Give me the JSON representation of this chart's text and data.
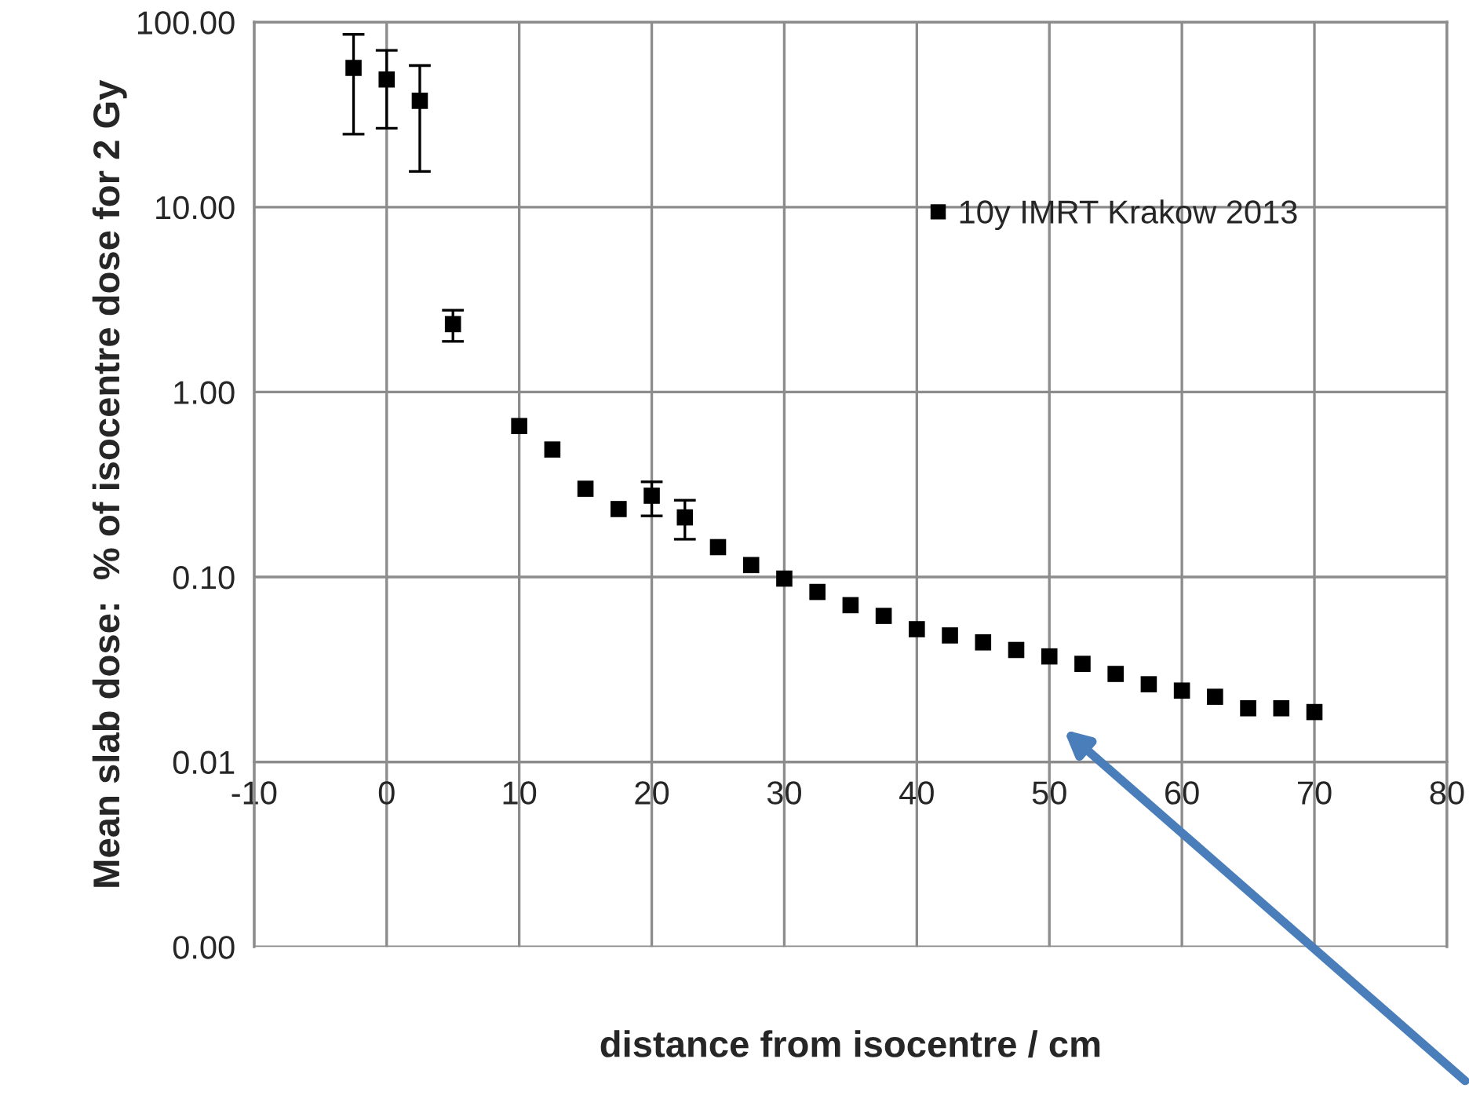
{
  "chart_data": {
    "type": "scatter",
    "xlabel": "distance from isocentre / cm",
    "ylabel": "Mean slab dose:  % of isocentre dose for 2 Gy",
    "x": [
      -2.5,
      0,
      2.5,
      5,
      10,
      12.5,
      15,
      17.5,
      20,
      22.5,
      25,
      27.5,
      30,
      32.5,
      35,
      37.5,
      40,
      42.5,
      45,
      47.5,
      50,
      52.5,
      55,
      57.5,
      60,
      62.5,
      65,
      67.5,
      70
    ],
    "series": [
      {
        "name": "10y IMRT Krakow 2013",
        "color": "#000000",
        "values": [
          56.6,
          49,
          37.6,
          2.33,
          0.655,
          0.489,
          0.3,
          0.233,
          0.275,
          0.21,
          0.145,
          0.116,
          0.098,
          0.083,
          0.0704,
          0.0616,
          0.0522,
          0.0483,
          0.0443,
          0.0403,
          0.0372,
          0.0339,
          0.0299,
          0.0263,
          0.0243,
          0.0225,
          0.0195,
          0.0195,
          0.0186
        ],
        "errors": [
          [
            24.8,
            86
          ],
          [
            26.7,
            70.5
          ],
          [
            15.6,
            58.3
          ],
          [
            1.88,
            2.77
          ],
          null,
          null,
          null,
          null,
          [
            0.214,
            0.327
          ],
          [
            0.16,
            0.26
          ],
          null,
          null,
          null,
          null,
          null,
          null,
          null,
          null,
          null,
          null,
          null,
          null,
          null,
          null,
          null,
          null,
          null,
          null,
          null
        ]
      }
    ],
    "log": "y",
    "xlim": [
      -10,
      80
    ],
    "xticks": [
      -10,
      0,
      10,
      20,
      30,
      40,
      50,
      60,
      70,
      80
    ],
    "ylim": [
      0.001,
      100
    ],
    "yticks": [
      {
        "value": 0.001,
        "label": "0.00"
      },
      {
        "value": 0.01,
        "label": "0.01"
      },
      {
        "value": 0.1,
        "label": "0.10"
      },
      {
        "value": 1,
        "label": "1.00"
      },
      {
        "value": 10,
        "label": "10.00"
      },
      {
        "value": 100,
        "label": "100.00"
      }
    ],
    "grid": true,
    "legend": "top right",
    "marker": "square"
  }
}
